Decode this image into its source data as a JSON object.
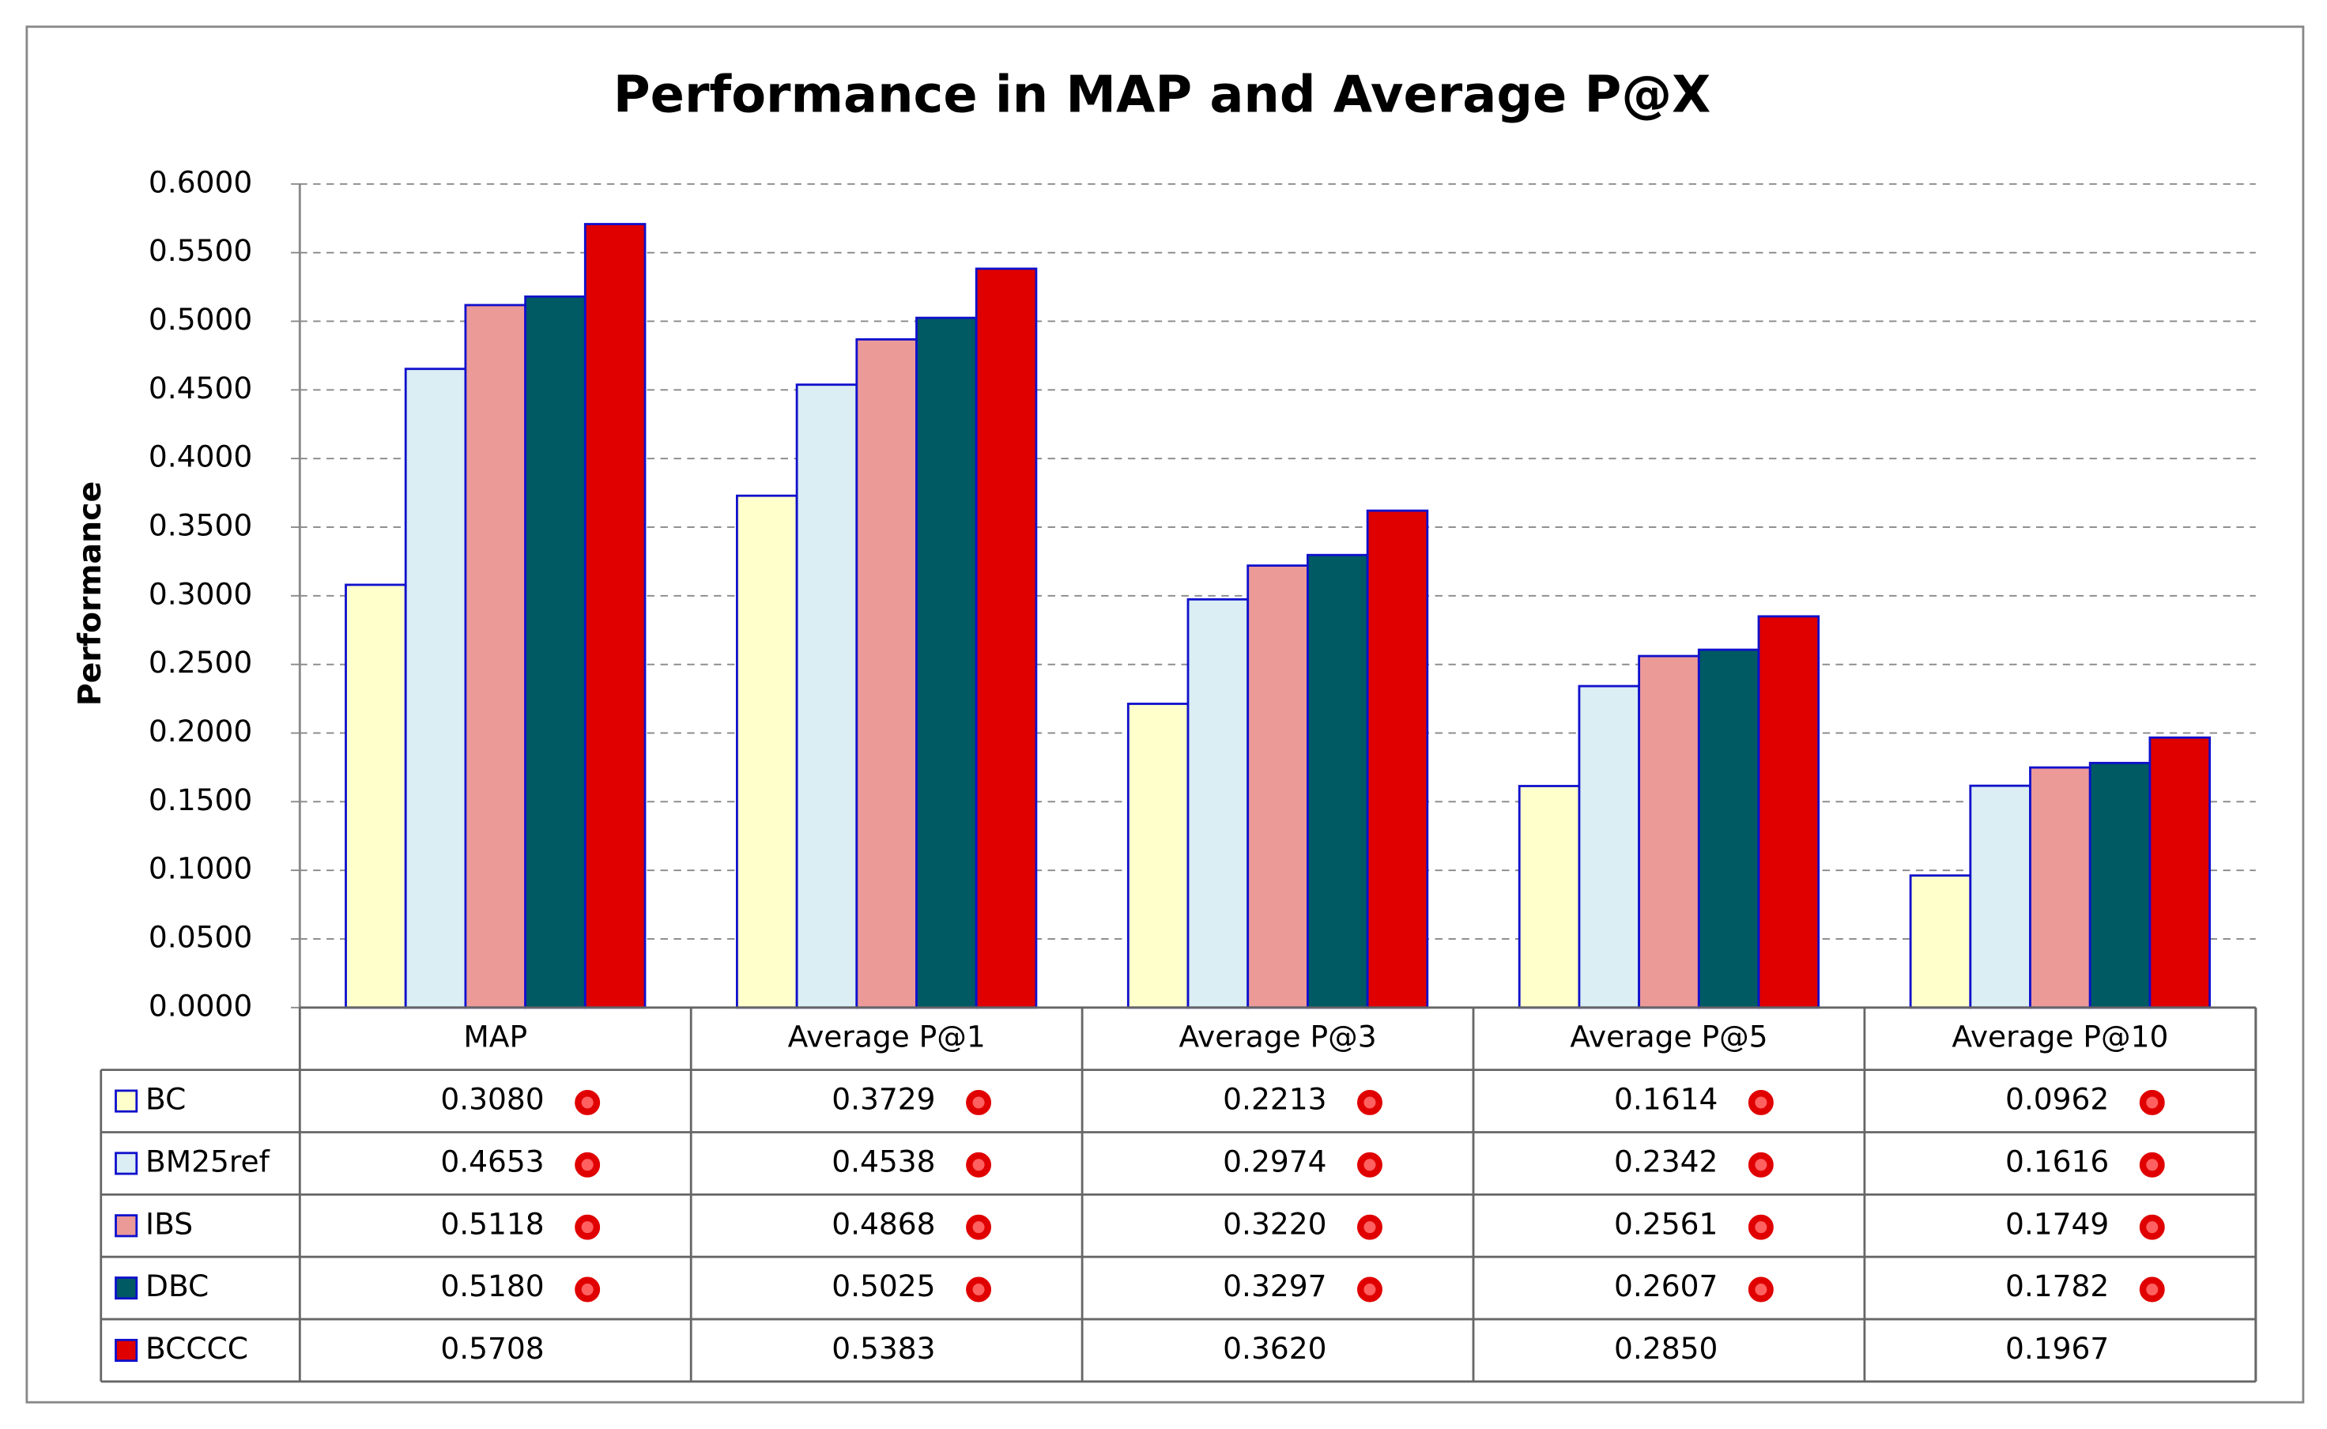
{
  "chart_data": {
    "type": "bar",
    "title": "Performance in MAP and Average P@X",
    "y_label": "Performance",
    "categories": [
      "MAP",
      "Average P@1",
      "Average P@3",
      "Average P@5",
      "Average P@10"
    ],
    "series": [
      {
        "name": "BC",
        "color": "#ffffcc",
        "values": [
          0.308,
          0.3729,
          0.2213,
          0.1614,
          0.0962
        ],
        "value_labels": [
          "0.3080",
          "0.3729",
          "0.2213",
          "0.1614",
          "0.0962"
        ]
      },
      {
        "name": "BM25ref",
        "color": "#daeef3",
        "values": [
          0.4653,
          0.4538,
          0.2974,
          0.2342,
          0.1616
        ],
        "value_labels": [
          "0.4653",
          "0.4538",
          "0.2974",
          "0.2342",
          "0.1616"
        ]
      },
      {
        "name": "IBS",
        "color": "#ec9a98",
        "values": [
          0.5118,
          0.4868,
          0.322,
          0.2561,
          0.1749
        ],
        "value_labels": [
          "0.5118",
          "0.4868",
          "0.3220",
          "0.2561",
          "0.1749"
        ]
      },
      {
        "name": "DBC",
        "color": "#005a64",
        "values": [
          0.518,
          0.5025,
          0.3297,
          0.2607,
          0.1782
        ],
        "value_labels": [
          "0.5180",
          "0.5025",
          "0.3297",
          "0.2607",
          "0.1782"
        ]
      },
      {
        "name": "BCCCC",
        "color": "#e00000",
        "values": [
          0.5708,
          0.5383,
          0.362,
          0.285,
          0.1967
        ],
        "value_labels": [
          "0.5708",
          "0.5383",
          "0.3620",
          "0.2850",
          "0.1967"
        ]
      }
    ],
    "ylim": [
      0,
      0.6
    ],
    "yticks": [
      {
        "value": 0,
        "label": "0.0000"
      },
      {
        "value": 0.05,
        "label": "0.0500"
      },
      {
        "value": 0.1,
        "label": "0.1000"
      },
      {
        "value": 0.15,
        "label": "0.1500"
      },
      {
        "value": 0.2,
        "label": "0.2000"
      },
      {
        "value": 0.25,
        "label": "0.2500"
      },
      {
        "value": 0.3,
        "label": "0.3000"
      },
      {
        "value": 0.35,
        "label": "0.3500"
      },
      {
        "value": 0.4,
        "label": "0.4000"
      },
      {
        "value": 0.45,
        "label": "0.4500"
      },
      {
        "value": 0.5,
        "label": "0.5000"
      },
      {
        "value": 0.55,
        "label": "0.5500"
      },
      {
        "value": 0.6,
        "label": "0.6000"
      }
    ],
    "grid": true
  }
}
